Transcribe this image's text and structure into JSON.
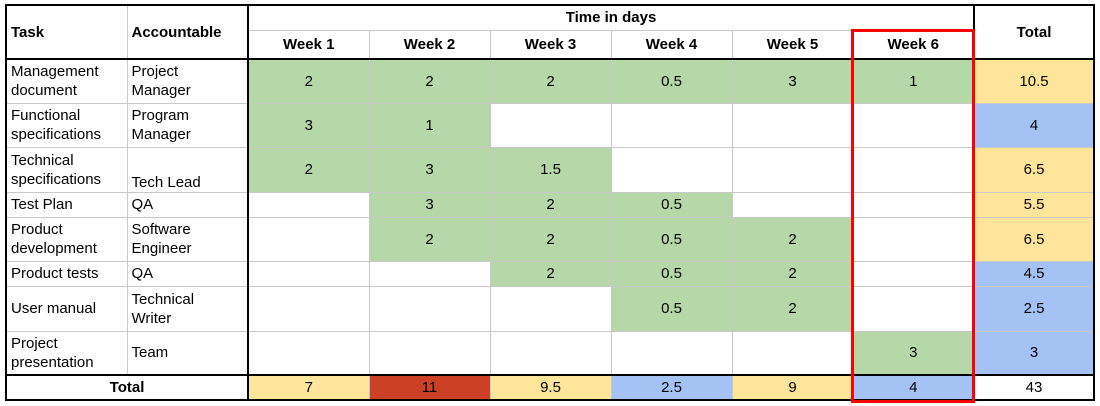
{
  "headers": {
    "task": "Task",
    "accountable": "Accountable",
    "time_in_days": "Time in days",
    "total": "Total",
    "weeks": [
      "Week 1",
      "Week 2",
      "Week 3",
      "Week 4",
      "Week 5",
      "Week 6"
    ]
  },
  "rows": [
    {
      "task": [
        "Management",
        "document"
      ],
      "accountable": [
        "Project",
        "Manager"
      ],
      "values": [
        "2",
        "2",
        "2",
        "0.5",
        "3",
        "1"
      ],
      "total": "10.5"
    },
    {
      "task": [
        "Functional",
        "specifications"
      ],
      "accountable": [
        "Program",
        "Manager"
      ],
      "values": [
        "3",
        "1",
        "",
        "",
        "",
        ""
      ],
      "total": "4"
    },
    {
      "task": [
        "Technical",
        "specifications"
      ],
      "accountable": [
        "",
        "Tech Lead"
      ],
      "values": [
        "2",
        "3",
        "1.5",
        "",
        "",
        ""
      ],
      "total": "6.5"
    },
    {
      "task": [
        "Test Plan"
      ],
      "accountable": [
        "QA"
      ],
      "values": [
        "",
        "3",
        "2",
        "0.5",
        "",
        ""
      ],
      "total": "5.5"
    },
    {
      "task": [
        "Product",
        "development"
      ],
      "accountable": [
        "Software",
        "Engineer"
      ],
      "values": [
        "",
        "2",
        "2",
        "0.5",
        "2",
        ""
      ],
      "total": "6.5"
    },
    {
      "task": [
        "Product tests"
      ],
      "accountable": [
        "QA"
      ],
      "values": [
        "",
        "",
        "2",
        "0.5",
        "2",
        ""
      ],
      "total": "4.5"
    },
    {
      "task": [
        "User manual"
      ],
      "accountable": [
        "Technical",
        "Writer"
      ],
      "values": [
        "",
        "",
        "",
        "0.5",
        "2",
        ""
      ],
      "total": "2.5"
    },
    {
      "task": [
        "Project",
        "presentation"
      ],
      "accountable": [
        "Team"
      ],
      "values": [
        "",
        "",
        "",
        "",
        "",
        "3"
      ],
      "total": "3"
    }
  ],
  "totals_row": {
    "label": "Total",
    "values": [
      "7",
      "11",
      "9.5",
      "2.5",
      "9",
      "4"
    ],
    "grand_total": "43"
  },
  "colors": {
    "green": "#b6d7a8",
    "yellow": "#ffe599",
    "blue": "#a4c2f4",
    "red": "#cc4125",
    "highlight_box": "#ff0000"
  }
}
